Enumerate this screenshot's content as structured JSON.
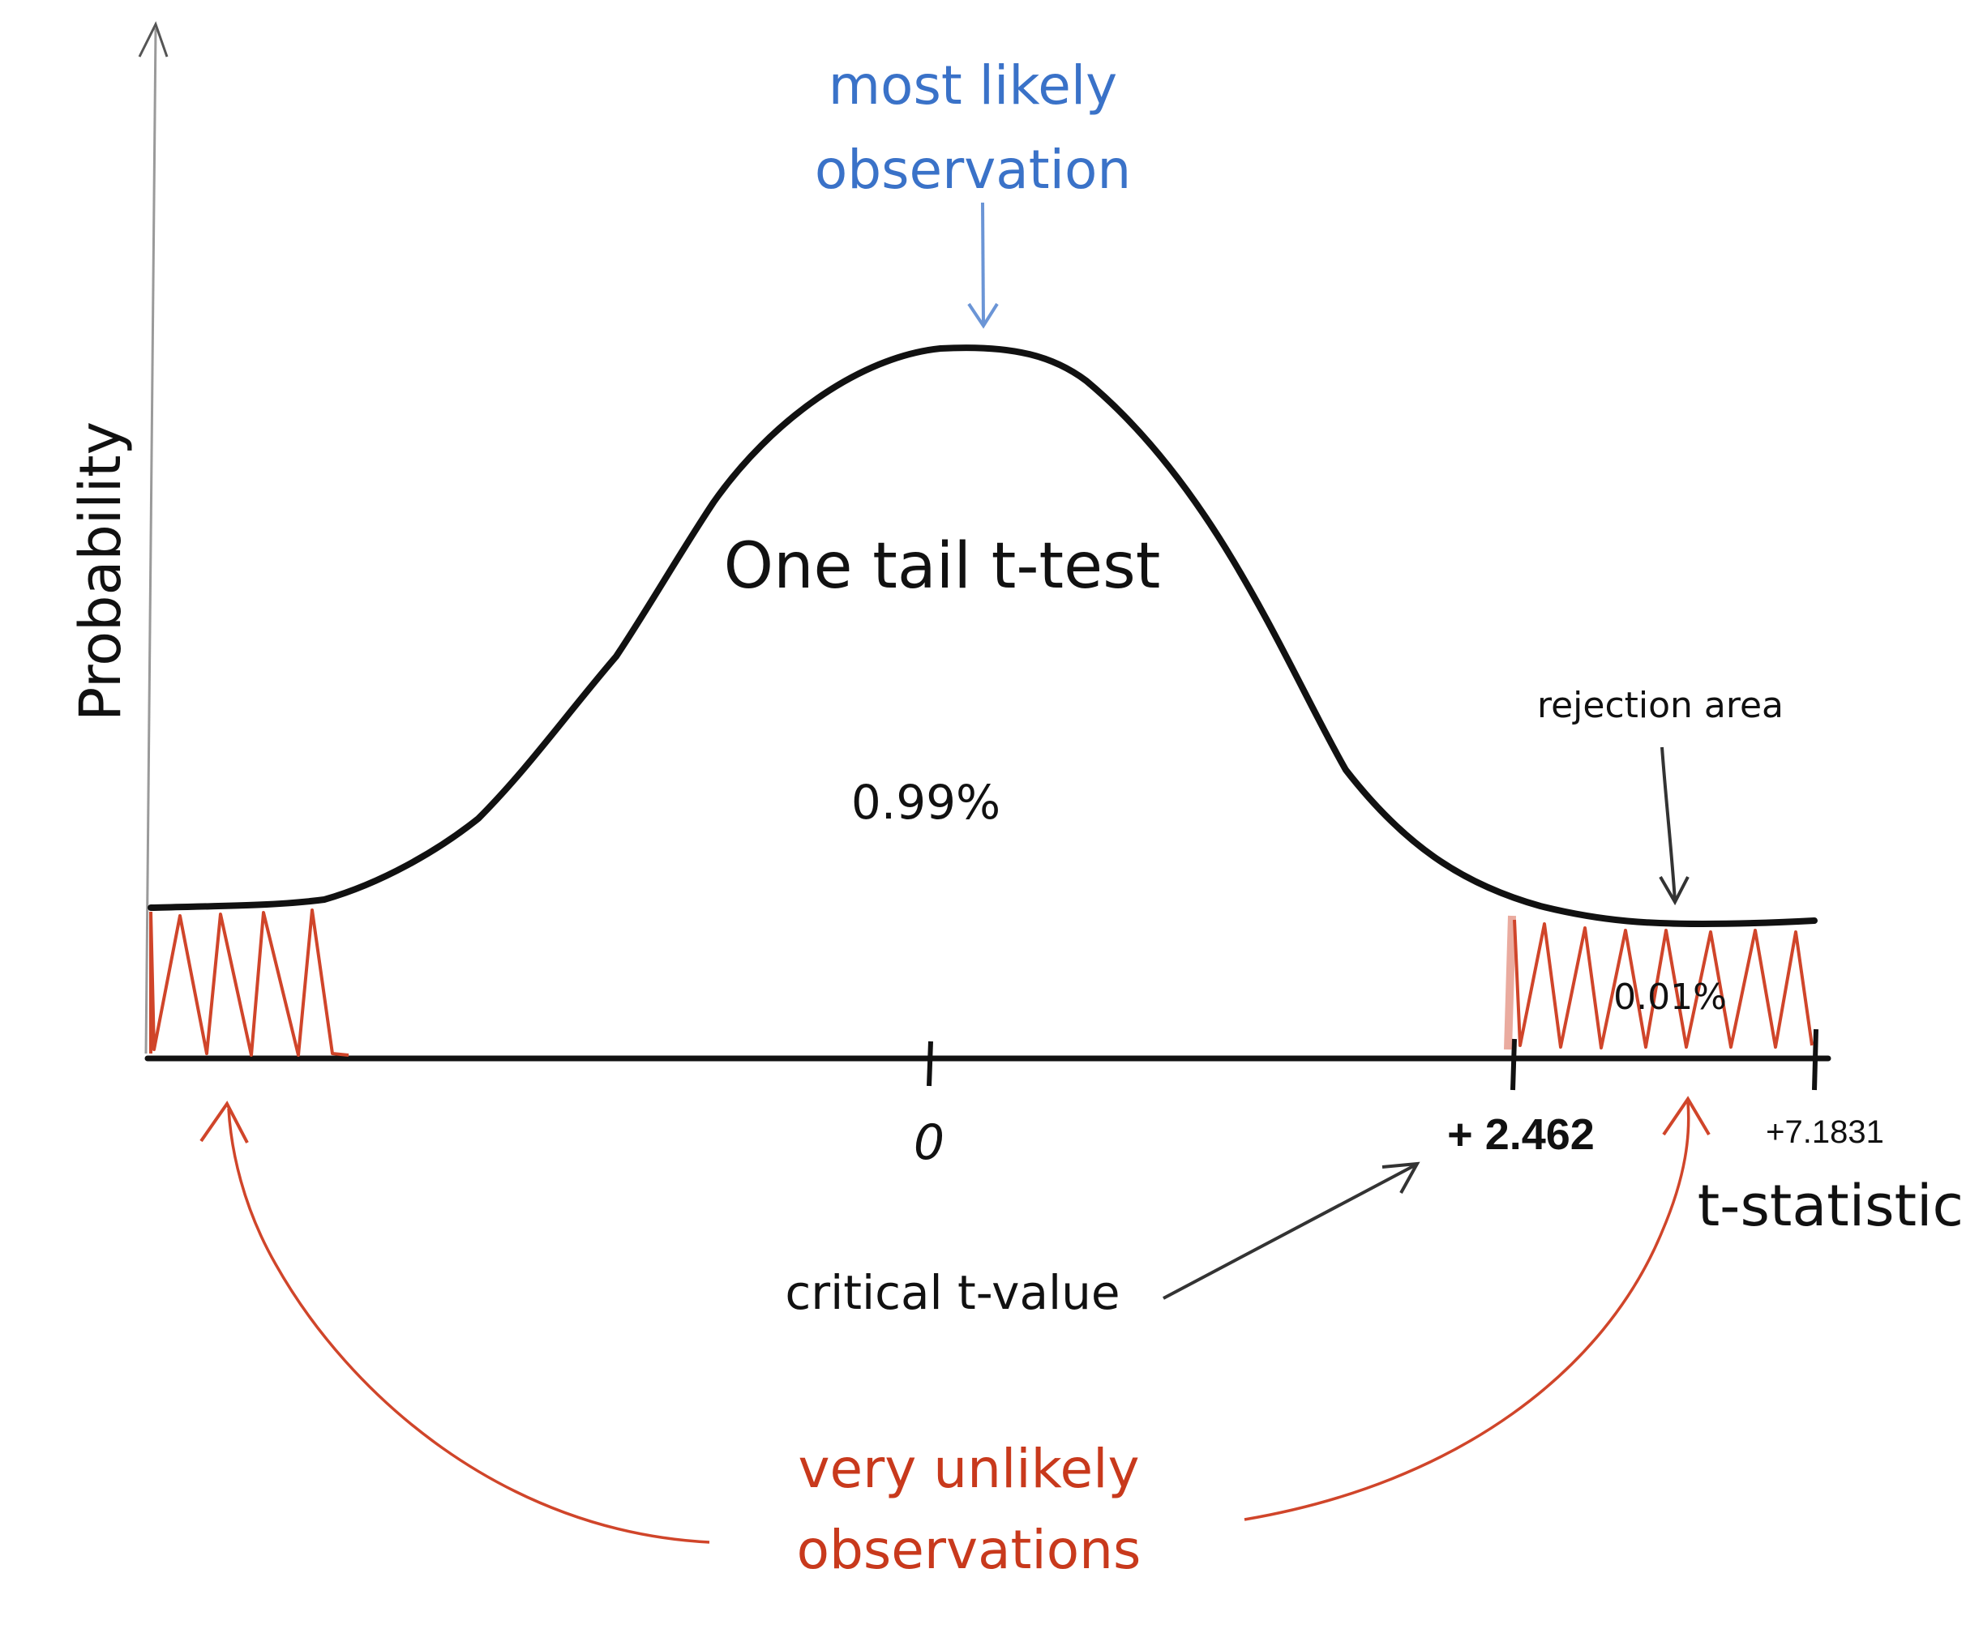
{
  "diagram": {
    "title": "One tail t-test",
    "y_axis_label": "Probability",
    "x_axis_label": "t-statistic",
    "center_probability": "0.99%",
    "tail_probability": "0.01%",
    "tick_zero": "0",
    "tick_critical": "+ 2.462",
    "tick_end": "+7.1831",
    "most_likely_line1": "most likely",
    "most_likely_line2": "observation",
    "rejection_area": "rejection area",
    "critical_value_label": "critical t-value",
    "unlikely_line1": "very unlikely",
    "unlikely_line2": "observations"
  },
  "colors": {
    "curve": "#111111",
    "hatch": "#d0452a",
    "blue_text": "#3a72c8",
    "red_text": "#c8391c"
  }
}
